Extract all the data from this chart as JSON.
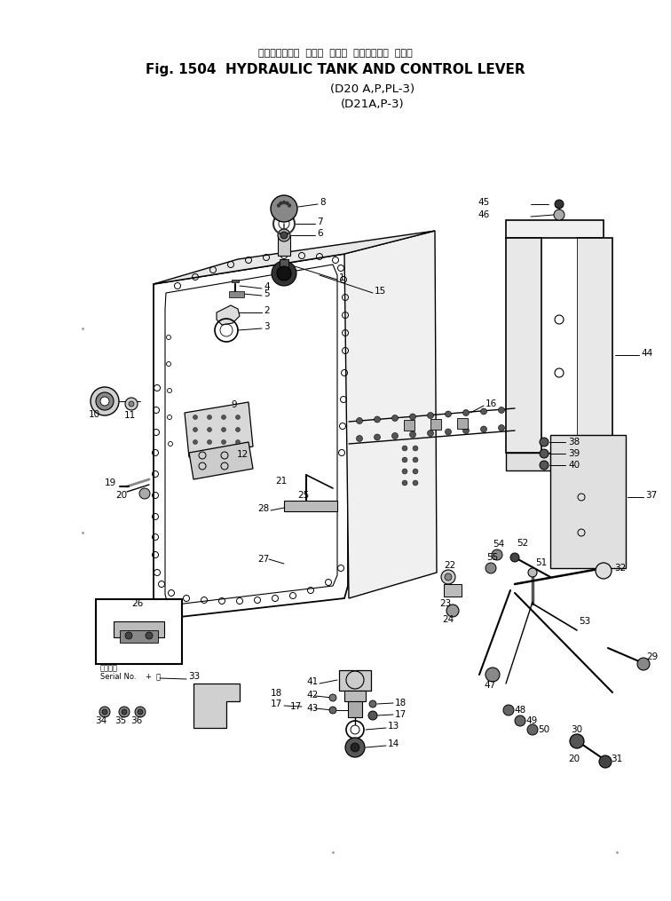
{
  "title_japanese": "ハイドロリック  タンク  および  コントロール  レバー",
  "title_english": "Fig. 1504  HYDRAULIC TANK AND CONTROL LEVER",
  "subtitle1": "(D20 A,P,PL-3)",
  "subtitle2": "(D21A,P-3)",
  "bg_color": "#ffffff",
  "line_color": "#000000",
  "fig_width": 7.56,
  "fig_height": 10.15,
  "dpi": 100
}
